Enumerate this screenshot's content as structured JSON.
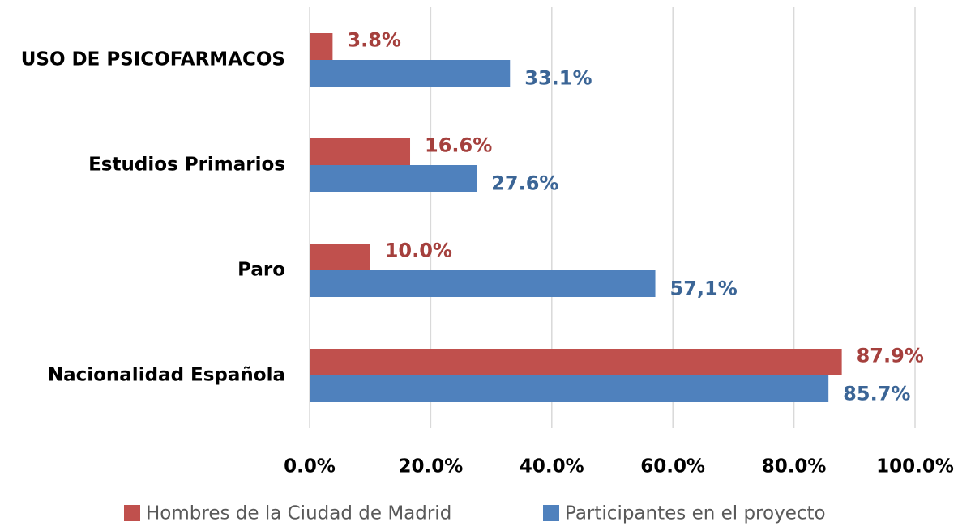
{
  "chart_data": {
    "type": "hbar",
    "categories": [
      "USO DE PSICOFARMACOS",
      "Estudios Primarios",
      "Paro",
      "Nacionalidad Española"
    ],
    "series": [
      {
        "name": "Hombres de la Ciudad de Madrid",
        "color": "#c0504d",
        "label_color": "#a5403d",
        "values": [
          3.8,
          16.6,
          10.0,
          87.9
        ],
        "value_labels": [
          "3.8%",
          "16.6%",
          "10.0%",
          "87.9%"
        ]
      },
      {
        "name": "Participantes en el proyecto",
        "color": "#4f81bd",
        "label_color": "#3b6596",
        "values": [
          33.1,
          27.6,
          57.1,
          85.7
        ],
        "value_labels": [
          "33.1%",
          "27.6%",
          "57,1%",
          "85.7%"
        ]
      }
    ],
    "xlim": [
      0,
      100
    ],
    "xticks": [
      {
        "value": 0,
        "label": "0.0%"
      },
      {
        "value": 20,
        "label": "20.0%"
      },
      {
        "value": 40,
        "label": "40.0%"
      },
      {
        "value": 60,
        "label": "60.0%"
      },
      {
        "value": 80,
        "label": "80.0%"
      },
      {
        "value": 100,
        "label": "100.0%"
      }
    ],
    "grid": true,
    "legend": "bottom"
  }
}
